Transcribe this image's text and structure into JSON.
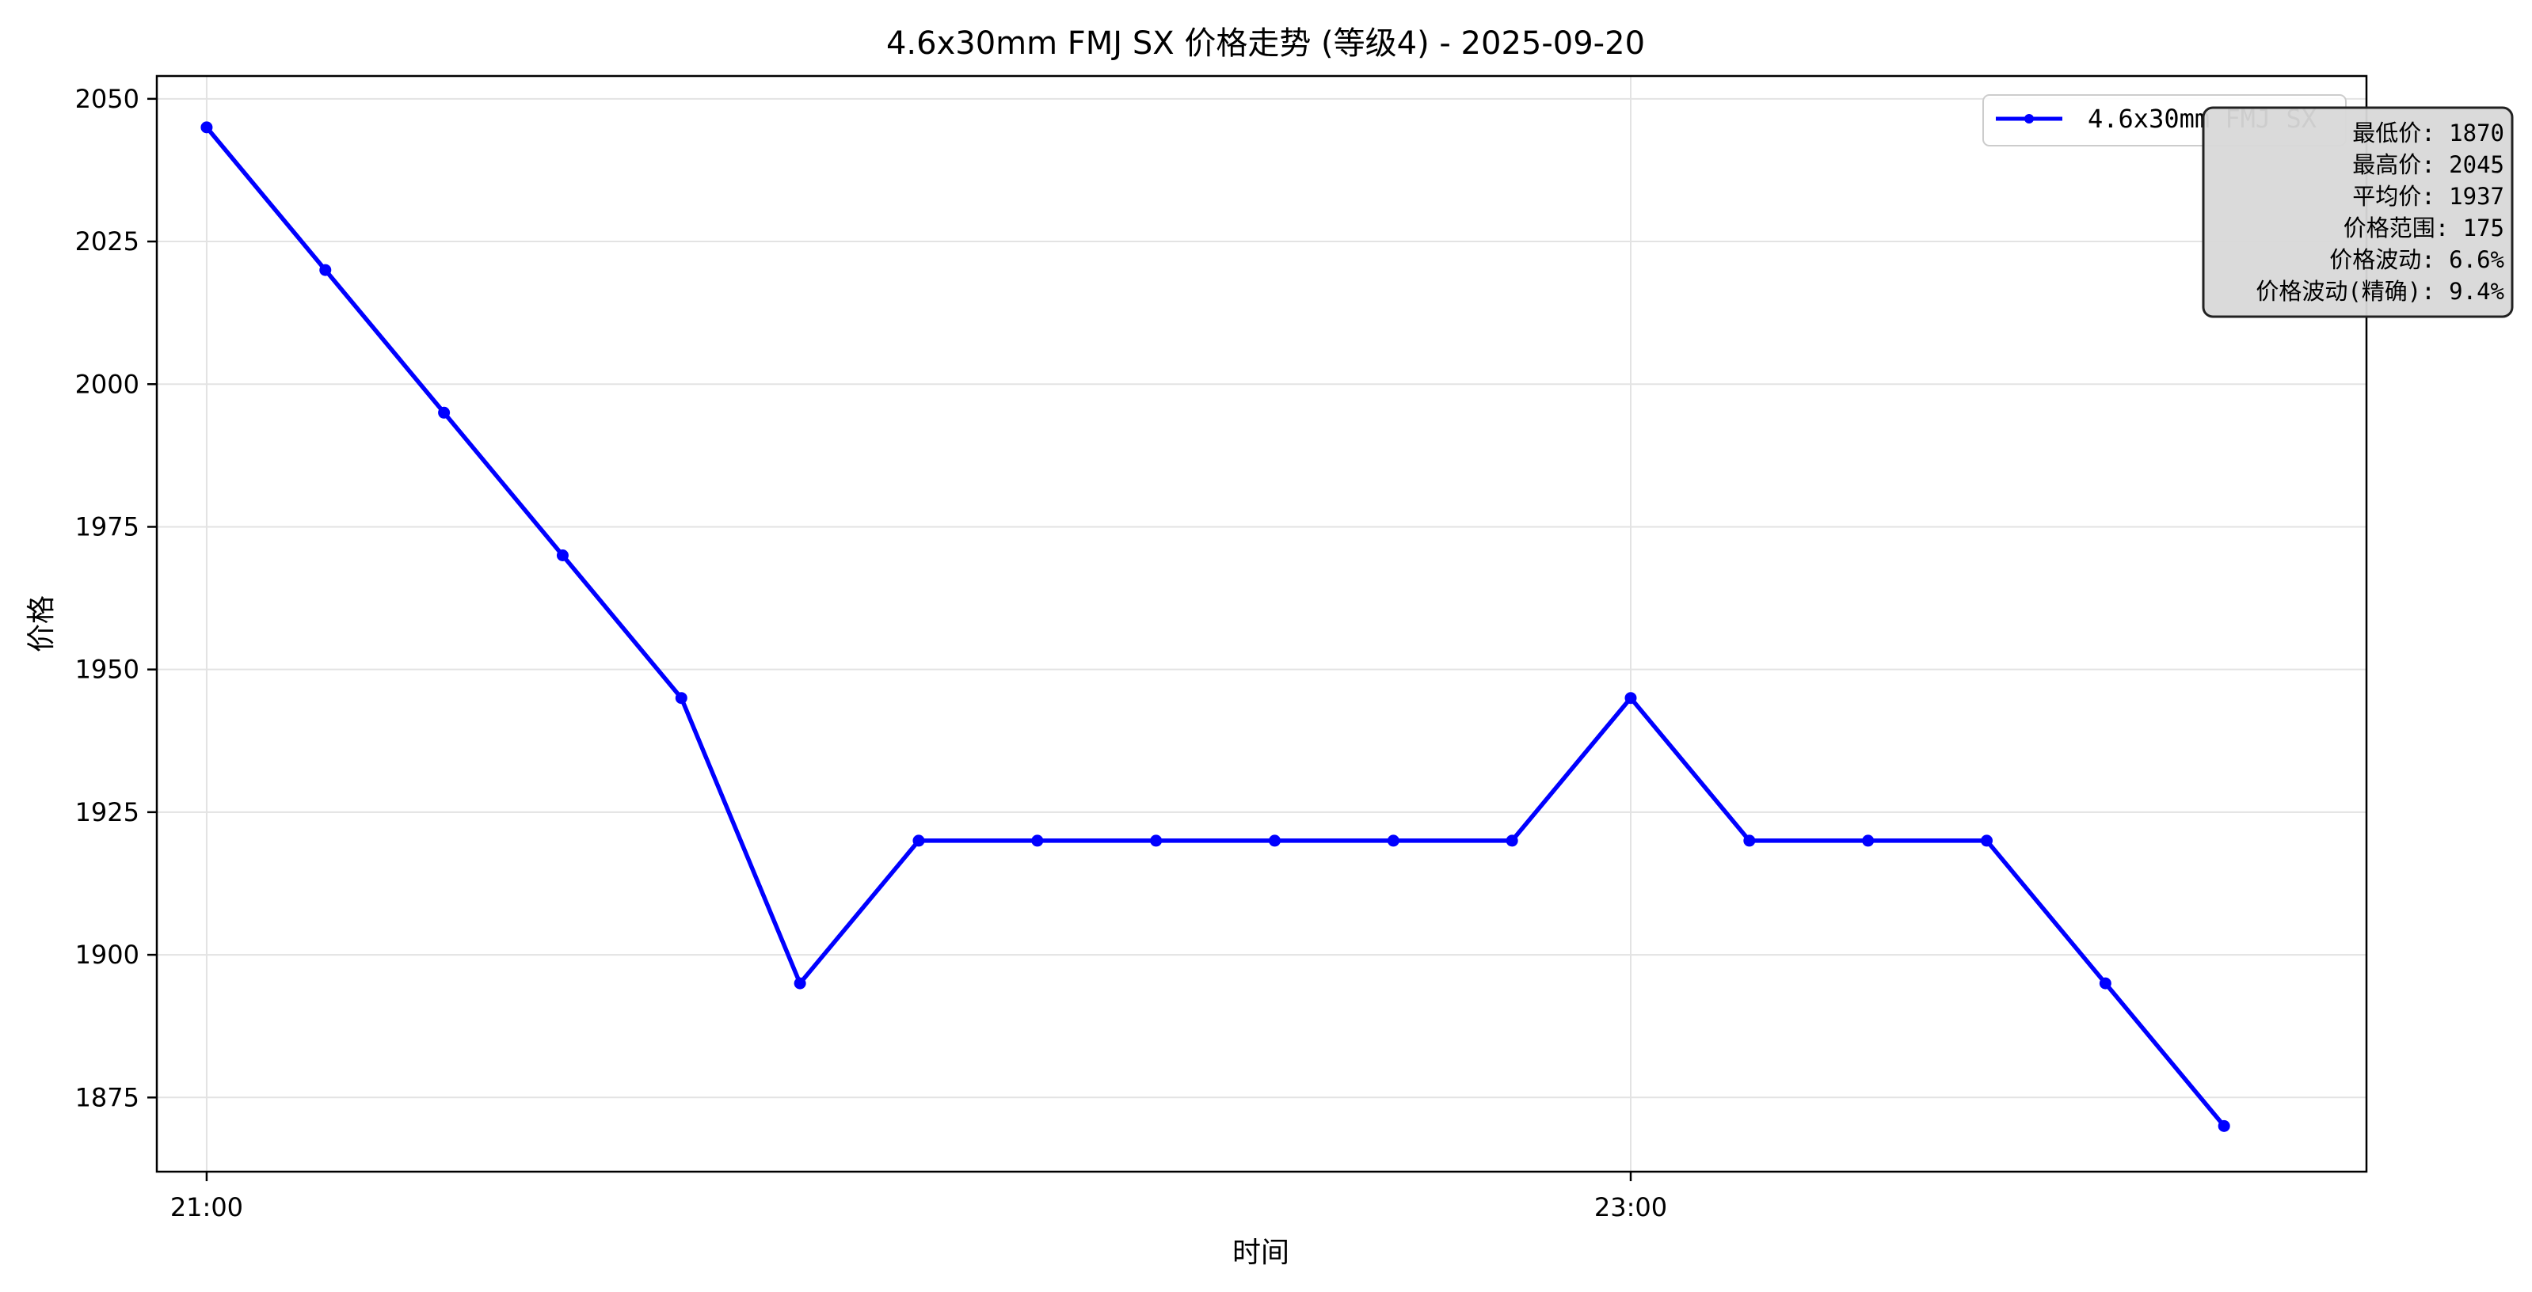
{
  "chart_data": {
    "type": "line",
    "title": "4.6x30mm FMJ SX 价格走势 (等级4) - 2025-09-20",
    "xlabel": "时间",
    "ylabel": "价格",
    "ylim": [
      1862,
      2054
    ],
    "yticks": [
      1875,
      1900,
      1925,
      1950,
      1975,
      2000,
      2025,
      2050
    ],
    "xlim": [
      -0.42,
      18.2
    ],
    "xticks": [
      {
        "index": 0,
        "label": "21:00"
      },
      {
        "index": 12,
        "label": "23:00"
      }
    ],
    "grid": true,
    "legend_position": "upper-right",
    "series": [
      {
        "name": "4.6x30mm FMJ SX",
        "color": "#0000ff",
        "marker": "circle",
        "x": [
          0,
          1,
          2,
          3,
          4,
          5,
          6,
          7,
          8,
          9,
          10,
          11,
          12,
          13,
          14,
          15,
          16,
          17
        ],
        "values": [
          2045,
          2020,
          1995,
          1970,
          1945,
          1895,
          1920,
          1920,
          1920,
          1920,
          1920,
          1920,
          1945,
          1920,
          1920,
          1920,
          1895,
          1870
        ]
      }
    ],
    "annotation": {
      "lines": [
        "最低价: 1870",
        "最高价: 2045",
        "平均价: 1937",
        "价格范围: 175",
        "价格波动: 6.6%",
        "价格波动(精确): 9.4%"
      ]
    }
  }
}
